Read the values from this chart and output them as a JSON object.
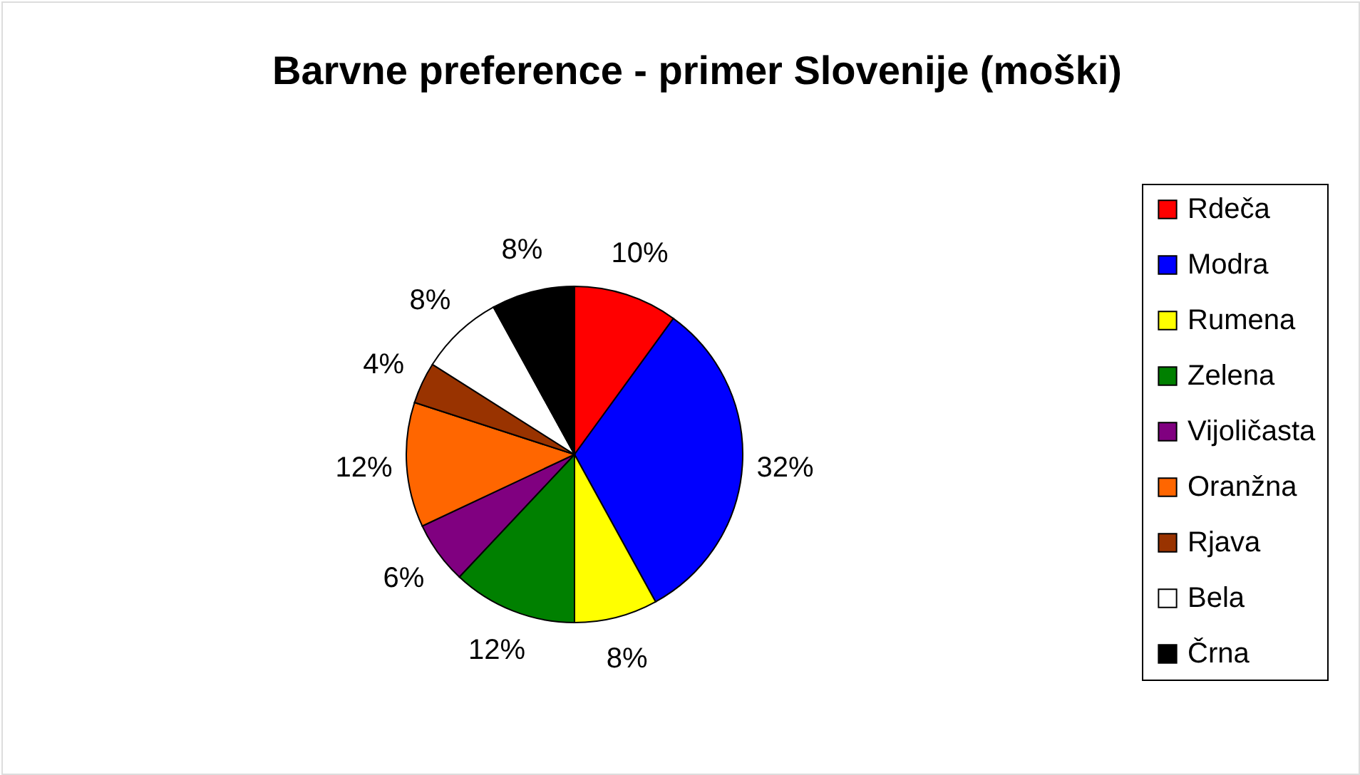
{
  "chart_data": {
    "type": "pie",
    "title": "Barvne preference - primer Slovenije (moški)",
    "categories": [
      "Rdeča",
      "Modra",
      "Rumena",
      "Zelena",
      "Vijoličasta",
      "Oranžna",
      "Rjava",
      "Bela",
      "Črna"
    ],
    "values": [
      10,
      32,
      8,
      12,
      6,
      12,
      4,
      8,
      8
    ],
    "value_labels": [
      "10%",
      "32%",
      "8%",
      "12%",
      "6%",
      "12%",
      "4%",
      "8%",
      "8%"
    ],
    "colors": [
      "#ff0000",
      "#0000ff",
      "#ffff00",
      "#008000",
      "#800080",
      "#ff6600",
      "#993300",
      "#ffffff",
      "#000000"
    ],
    "legend": "right"
  }
}
